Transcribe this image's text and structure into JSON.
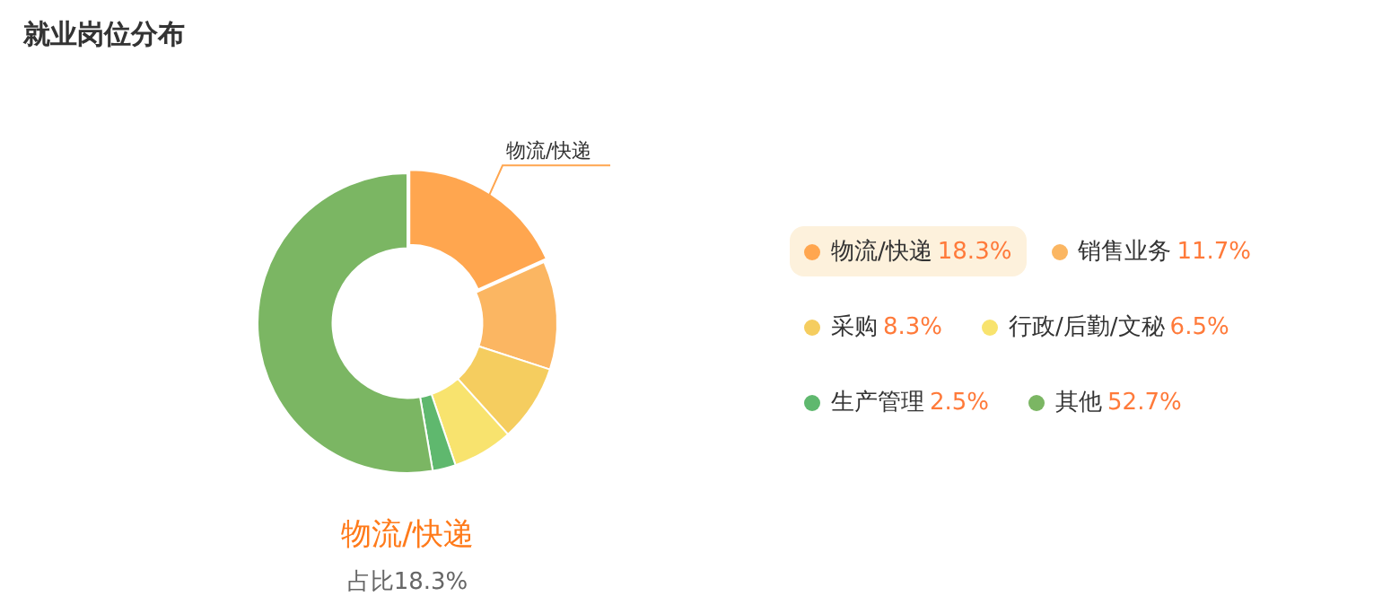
{
  "chart_data": {
    "type": "donut",
    "title": "就业岗位分布",
    "categories": [
      "物流/快递",
      "销售业务",
      "采购",
      "行政/后勤/文秘",
      "生产管理",
      "其他"
    ],
    "values": [
      18.3,
      11.7,
      8.3,
      6.5,
      2.5,
      52.7
    ],
    "value_labels": [
      "18.3%",
      "11.7%",
      "8.3%",
      "6.5%",
      "2.5%",
      "52.7%"
    ],
    "colors": [
      "#ffa64f",
      "#fbb662",
      "#f5cd5f",
      "#f8e36e",
      "#5fb86e",
      "#7bb663"
    ],
    "legend": "right",
    "annotations": [
      "物流/快递",
      "物流/快递",
      "占比18.3%"
    ]
  }
}
